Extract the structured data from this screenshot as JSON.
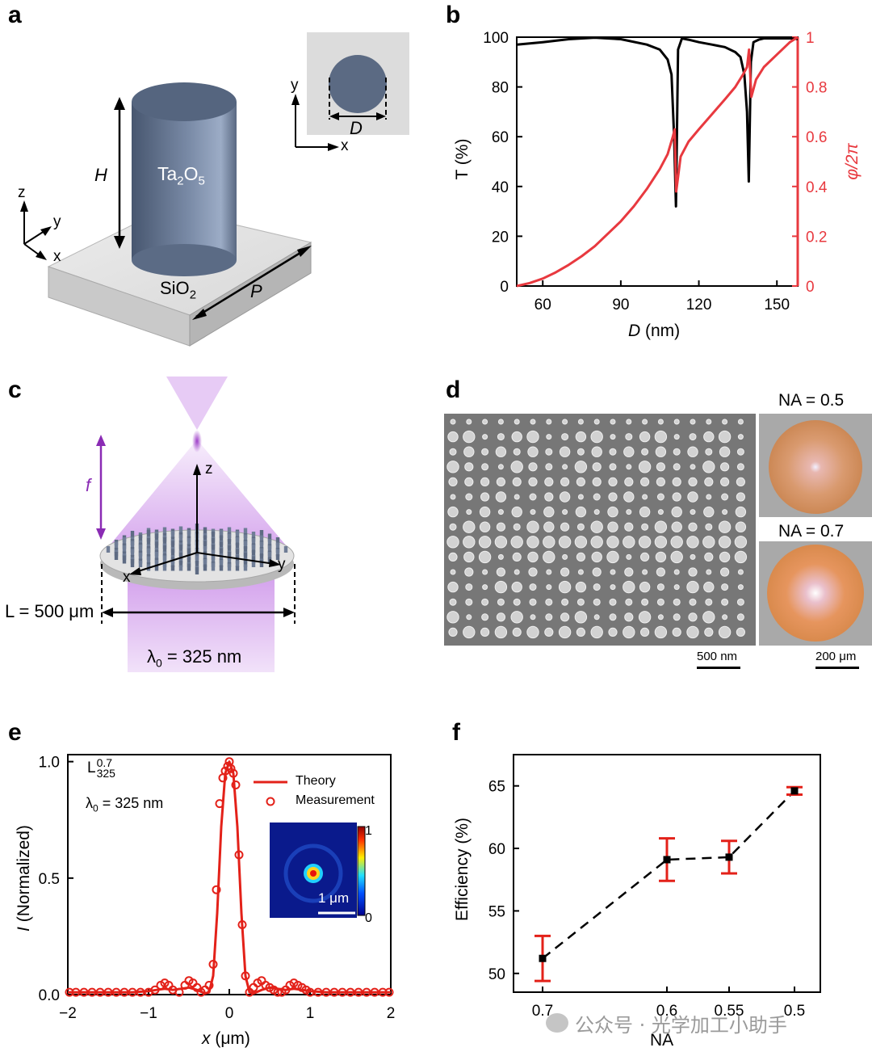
{
  "panels": {
    "a": {
      "letter": "a",
      "material_pillar": "Ta2O5",
      "material_pillar_main": "Ta",
      "material_pillar_sub1": "2",
      "material_pillar_mid": "O",
      "material_pillar_sub2": "5",
      "material_substrate_main": "SiO",
      "material_substrate_sub": "2",
      "height_label": "H",
      "period_label": "P",
      "diameter_label": "D",
      "axes": {
        "x": "x",
        "y": "y",
        "z": "z"
      }
    },
    "b": {
      "letter": "b",
      "xlabel_var": "D",
      "xlabel_unit": " (nm)",
      "ylabel_left": "T (%)",
      "ylabel_right": "φ/2π",
      "x_ticks": [
        "60",
        "90",
        "120",
        "150"
      ],
      "y_left_ticks": [
        "0",
        "20",
        "40",
        "60",
        "80",
        "100"
      ],
      "y_right_ticks": [
        "0",
        "0.2",
        "0.4",
        "0.6",
        "0.8",
        "1"
      ],
      "colors": {
        "transmission": "#000000",
        "phase": "#e8393f"
      }
    },
    "c": {
      "letter": "c",
      "focal_label": "f",
      "width_label": "L = 500 μm",
      "wavelength_label_main": "λ",
      "wavelength_label_sub": "0",
      "wavelength_label_rest": " = 325 nm",
      "axes": {
        "x": "x",
        "y": "y",
        "z": "z"
      },
      "colors": {
        "beam": "#c98be8",
        "focal_arrow": "#8a2bb4"
      }
    },
    "d": {
      "letter": "d",
      "scale_sem": "500 nm",
      "scale_optical": "200 μm",
      "na_top": "NA = 0.5",
      "na_bottom": "NA = 0.7"
    },
    "e": {
      "letter": "e",
      "lens_label_main": "L",
      "lens_label_sup": "0.7",
      "lens_label_sub": "325",
      "wavelength_main": "λ",
      "wavelength_sub": "0",
      "wavelength_rest": " = 325 nm",
      "legend_theory": "Theory",
      "legend_measurement": "Measurement",
      "ylabel_var": "I",
      "ylabel_rest": " (Normalized)",
      "xlabel_var": "x",
      "xlabel_unit": " (μm)",
      "x_ticks": [
        "−2",
        "−1",
        "0",
        "1",
        "2"
      ],
      "y_ticks": [
        "0.0",
        "0.5",
        "1.0"
      ],
      "inset_scale": "1 μm",
      "inset_cbar_max": "1",
      "inset_cbar_min": "0",
      "colors": {
        "theory": "#e32119",
        "measurement": "#e32119"
      }
    },
    "f": {
      "letter": "f",
      "ylabel": "Efficiency (%)",
      "xlabel": "NA",
      "x_ticks": [
        "0.7",
        "0.6",
        "0.55",
        "0.5"
      ],
      "y_ticks": [
        "50",
        "55",
        "60",
        "65"
      ],
      "colors": {
        "errorbar": "#e32119",
        "marker": "#000000"
      }
    }
  },
  "watermark": "公众号 · 光学加工小助手",
  "chart_data": [
    {
      "type": "line",
      "panel": "b",
      "xlabel": "D (nm)",
      "ylabel": "T (%)",
      "ylabel_right": "φ/2π",
      "xlim": [
        50,
        158
      ],
      "ylim": [
        0,
        100
      ],
      "ylim_right": [
        0,
        1
      ],
      "series": [
        {
          "name": "T",
          "axis": "left",
          "x": [
            50,
            55,
            60,
            70,
            80,
            90,
            100,
            105,
            108,
            109.5,
            110.5,
            111.2,
            112,
            113.5,
            116,
            120,
            125,
            130,
            134,
            136,
            137.5,
            138.5,
            139.2,
            140,
            141,
            143,
            145,
            150,
            155,
            158
          ],
          "y": [
            97,
            97.5,
            98,
            99.2,
            99.8,
            99.2,
            97,
            95,
            91,
            85,
            60,
            32,
            95,
            99.5,
            99,
            98,
            97,
            96,
            94,
            92,
            85,
            70,
            42,
            90,
            98,
            99,
            99.5,
            99.5,
            99.5,
            99.3
          ]
        },
        {
          "name": "φ/2π",
          "axis": "right",
          "x": [
            50,
            55,
            60,
            65,
            70,
            75,
            80,
            85,
            90,
            95,
            100,
            105,
            108,
            110,
            110.7,
            111.3,
            113,
            116,
            120,
            125,
            130,
            134,
            137,
            138.5,
            139.3,
            140.2,
            142,
            145,
            150,
            155,
            158
          ],
          "y": [
            0,
            0.012,
            0.03,
            0.055,
            0.085,
            0.12,
            0.16,
            0.21,
            0.26,
            0.32,
            0.39,
            0.47,
            0.53,
            0.6,
            0.63,
            0.38,
            0.52,
            0.58,
            0.63,
            0.69,
            0.75,
            0.8,
            0.85,
            0.88,
            0.95,
            0.76,
            0.83,
            0.88,
            0.93,
            0.98,
            1.0
          ]
        }
      ]
    },
    {
      "type": "line",
      "panel": "e",
      "xlabel": "x (μm)",
      "ylabel": "I (Normalized)",
      "xlim": [
        -2,
        2
      ],
      "ylim": [
        0,
        1.03
      ],
      "series": [
        {
          "name": "Theory",
          "x": [
            -2,
            -1.2,
            -1.0,
            -0.9,
            -0.8,
            -0.7,
            -0.6,
            -0.5,
            -0.4,
            -0.3,
            -0.25,
            -0.2,
            -0.15,
            -0.1,
            -0.05,
            0,
            0.05,
            0.1,
            0.15,
            0.2,
            0.25,
            0.3,
            0.4,
            0.5,
            0.6,
            0.7,
            0.8,
            0.9,
            1.0,
            1.2,
            2
          ],
          "y": [
            0.01,
            0.01,
            0.015,
            0.02,
            0.025,
            0.02,
            0.025,
            0.03,
            0.02,
            0.005,
            0.01,
            0.08,
            0.35,
            0.72,
            0.95,
            1.0,
            0.95,
            0.72,
            0.35,
            0.08,
            0.01,
            0.005,
            0.02,
            0.03,
            0.025,
            0.02,
            0.025,
            0.02,
            0.015,
            0.01,
            0.01
          ]
        },
        {
          "name": "Measurement",
          "x": [
            -1.98,
            -1.9,
            -1.8,
            -1.7,
            -1.6,
            -1.5,
            -1.4,
            -1.3,
            -1.2,
            -1.1,
            -1.0,
            -0.92,
            -0.85,
            -0.8,
            -0.75,
            -0.7,
            -0.62,
            -0.55,
            -0.5,
            -0.45,
            -0.4,
            -0.35,
            -0.3,
            -0.25,
            -0.2,
            -0.16,
            -0.12,
            -0.08,
            -0.05,
            -0.02,
            0.0,
            0.02,
            0.05,
            0.08,
            0.12,
            0.16,
            0.2,
            0.25,
            0.3,
            0.35,
            0.4,
            0.45,
            0.5,
            0.55,
            0.6,
            0.65,
            0.7,
            0.75,
            0.8,
            0.85,
            0.9,
            0.95,
            1.0,
            1.1,
            1.2,
            1.3,
            1.4,
            1.5,
            1.6,
            1.7,
            1.8,
            1.9,
            1.98
          ],
          "y": [
            0.01,
            0.01,
            0.01,
            0.01,
            0.01,
            0.01,
            0.01,
            0.01,
            0.01,
            0.01,
            0.01,
            0.02,
            0.04,
            0.05,
            0.04,
            0.02,
            0.01,
            0.04,
            0.06,
            0.05,
            0.03,
            0.01,
            0.02,
            0.04,
            0.13,
            0.45,
            0.82,
            0.93,
            0.96,
            0.98,
            1.0,
            0.97,
            0.95,
            0.9,
            0.6,
            0.3,
            0.08,
            0.01,
            0.03,
            0.05,
            0.06,
            0.04,
            0.03,
            0.02,
            0.01,
            0.01,
            0.02,
            0.04,
            0.05,
            0.04,
            0.03,
            0.02,
            0.01,
            0.01,
            0.01,
            0.01,
            0.01,
            0.01,
            0.01,
            0.01,
            0.01,
            0.01,
            0.01
          ]
        }
      ]
    },
    {
      "type": "scatter",
      "panel": "f",
      "xlabel": "NA",
      "ylabel": "Efficiency (%)",
      "categories": [
        "0.7",
        "0.6",
        "0.55",
        "0.5"
      ],
      "values": [
        51.2,
        59.1,
        59.3,
        64.6
      ],
      "errors": [
        1.8,
        1.7,
        1.3,
        0.3
      ],
      "ylim": [
        48.5,
        67.5
      ]
    }
  ]
}
